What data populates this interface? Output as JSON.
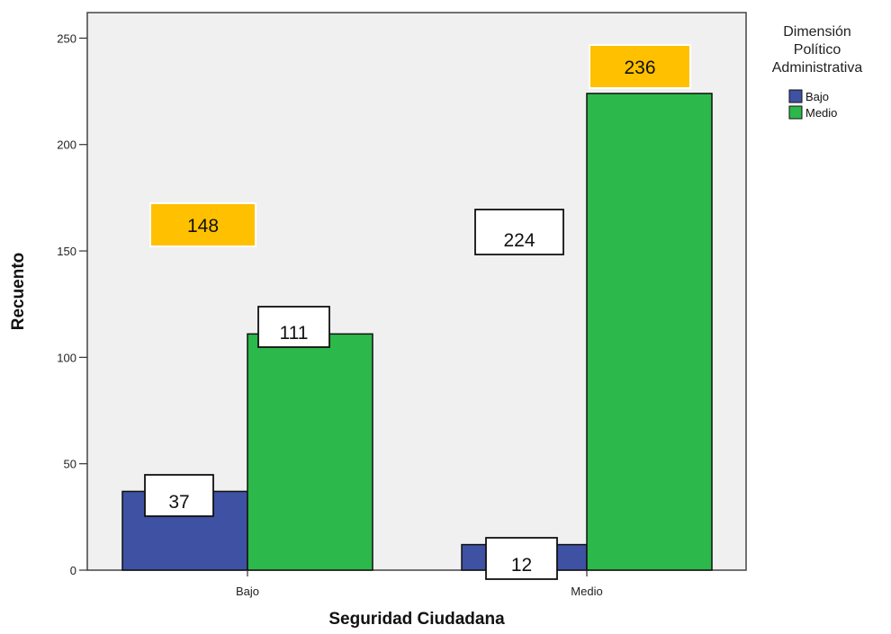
{
  "chart_data": {
    "type": "bar",
    "title": "",
    "xlabel": "Seguridad Ciudadana",
    "ylabel": "Recuento",
    "categories": [
      "Bajo",
      "Medio"
    ],
    "series": [
      {
        "name": "Bajo",
        "color": "#3f51a3",
        "values": [
          37,
          12
        ]
      },
      {
        "name": "Medio",
        "color": "#2db84b",
        "values": [
          111,
          224
        ]
      }
    ],
    "ylim": [
      0,
      262
    ],
    "yticks": [
      0,
      50,
      100,
      150,
      200,
      250
    ],
    "grid": false,
    "plot_background": "#f0f0f0",
    "legend": {
      "title_lines": [
        "Dimensión",
        "Político",
        "Administrativa"
      ],
      "placement": "right"
    },
    "bar_labels": [
      {
        "text": "37",
        "category": "Bajo",
        "series": "Bajo"
      },
      {
        "text": "111",
        "category": "Bajo",
        "series": "Medio"
      },
      {
        "text": "12",
        "category": "Medio",
        "series": "Bajo"
      },
      {
        "text": "224",
        "category": "Medio",
        "series": "Medio"
      }
    ],
    "total_labels": [
      {
        "text": "148",
        "category": "Bajo",
        "color": "#ffc000"
      },
      {
        "text": "236",
        "category": "Medio",
        "color": "#ffc000"
      }
    ]
  }
}
